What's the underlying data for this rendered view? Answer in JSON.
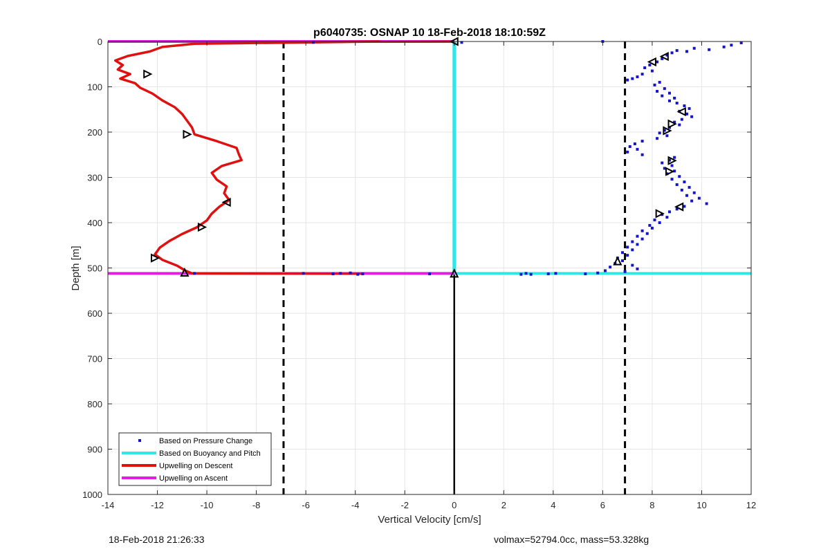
{
  "footer": {
    "left": "18-Feb-2018 21:26:33",
    "right": "volmax=52794.0cc, mass=53.328kg"
  },
  "chart_data": {
    "type": "line",
    "title": "p6040735: OSNAP 10 18-Feb-2018 18:10:59Z",
    "xlabel": "Vertical Velocity [cm/s]",
    "ylabel": "Depth [m]",
    "xlim": [
      -14,
      12
    ],
    "ylim": [
      0,
      1000
    ],
    "y_reversed": true,
    "grid": true,
    "xticks": [
      -14,
      -12,
      -10,
      -8,
      -6,
      -4,
      -2,
      0,
      2,
      4,
      6,
      8,
      10,
      12
    ],
    "yticks": [
      0,
      100,
      200,
      300,
      400,
      500,
      600,
      700,
      800,
      900,
      1000
    ],
    "legend_position": "bottom-left",
    "legend": [
      {
        "label": "Based on Pressure Change",
        "style": "dot",
        "color": "#1414c8"
      },
      {
        "label": "Based on Buoyancy and Pitch",
        "style": "line",
        "color": "#33e6e6"
      },
      {
        "label": "Upwelling on Descent",
        "style": "line",
        "color": "#e01010"
      },
      {
        "label": "Upwelling on Ascent",
        "style": "line",
        "color": "#e020e0"
      }
    ],
    "reference_lines": {
      "dashed_x": [
        -6.9,
        6.9
      ],
      "dashed_color": "#000000",
      "vertical_black": {
        "x": 0,
        "from_depth": 512,
        "to_depth": 1000
      }
    },
    "series": {
      "upwelling_descent": {
        "color": "#e01010",
        "depth": [
          0,
          5,
          12,
          22,
          32,
          42,
          52,
          62,
          72,
          82,
          92,
          102,
          115,
          130,
          145,
          160,
          175,
          190,
          205,
          220,
          235,
          250,
          262,
          275,
          290,
          305,
          320,
          335,
          350,
          365,
          380,
          395,
          410,
          425,
          440,
          455,
          470,
          482,
          495,
          505,
          512
        ],
        "values": [
          -3,
          -10.5,
          -11.8,
          -12.3,
          -13.2,
          -13.7,
          -13.4,
          -13.6,
          -13.1,
          -13.5,
          -12.9,
          -12.7,
          -12.2,
          -11.8,
          -11.3,
          -11.0,
          -10.8,
          -10.6,
          -10.5,
          -9.6,
          -8.8,
          -8.7,
          -8.6,
          -9.4,
          -9.8,
          -9.6,
          -9.2,
          -9.3,
          -9.1,
          -9.5,
          -9.8,
          -10.0,
          -10.4,
          -11.0,
          -11.5,
          -11.9,
          -12.1,
          -11.8,
          -11.2,
          -10.9,
          -10.6
        ]
      },
      "upwelling_ascent": {
        "color": "#e020e0",
        "segments": [
          {
            "depth": 0,
            "x_from": -14,
            "x_to": 0
          },
          {
            "depth": 512,
            "x_from": -14,
            "x_to": 0
          }
        ]
      },
      "buoyancy_pitch": {
        "color": "#33e6e6",
        "vertical": {
          "x": 0,
          "from_depth": 0,
          "to_depth": 512
        },
        "horizontal": {
          "depth": 512,
          "x_from": 0,
          "x_to": 12
        }
      },
      "pressure_change": {
        "color": "#1414c8",
        "points": [
          [
            11.6,
            3
          ],
          [
            11.2,
            8
          ],
          [
            10.9,
            12
          ],
          [
            10.3,
            18
          ],
          [
            9.7,
            15
          ],
          [
            9.4,
            22
          ],
          [
            9.0,
            20
          ],
          [
            8.8,
            25
          ],
          [
            8.6,
            30
          ],
          [
            8.4,
            38
          ],
          [
            8.2,
            45
          ],
          [
            7.9,
            52
          ],
          [
            7.7,
            58
          ],
          [
            8.0,
            65
          ],
          [
            7.6,
            72
          ],
          [
            7.4,
            78
          ],
          [
            7.2,
            82
          ],
          [
            7.0,
            85
          ],
          [
            8.3,
            90
          ],
          [
            8.1,
            96
          ],
          [
            8.5,
            104
          ],
          [
            8.2,
            110
          ],
          [
            8.7,
            114
          ],
          [
            8.4,
            120
          ],
          [
            8.9,
            125
          ],
          [
            8.7,
            131
          ],
          [
            9.0,
            136
          ],
          [
            9.3,
            142
          ],
          [
            9.5,
            148
          ],
          [
            9.1,
            154
          ],
          [
            9.4,
            160
          ],
          [
            9.6,
            166
          ],
          [
            9.2,
            172
          ],
          [
            8.9,
            178
          ],
          [
            9.1,
            184
          ],
          [
            8.7,
            190
          ],
          [
            8.5,
            196
          ],
          [
            8.3,
            202
          ],
          [
            8.6,
            208
          ],
          [
            8.2,
            214
          ],
          [
            7.6,
            220
          ],
          [
            7.3,
            226
          ],
          [
            7.1,
            232
          ],
          [
            7.4,
            238
          ],
          [
            7.0,
            244
          ],
          [
            7.6,
            250
          ],
          [
            8.9,
            256
          ],
          [
            8.7,
            262
          ],
          [
            8.4,
            268
          ],
          [
            8.8,
            274
          ],
          [
            8.5,
            280
          ],
          [
            8.9,
            286
          ],
          [
            8.6,
            292
          ],
          [
            9.1,
            298
          ],
          [
            8.8,
            304
          ],
          [
            9.3,
            310
          ],
          [
            9.0,
            316
          ],
          [
            9.5,
            322
          ],
          [
            9.2,
            328
          ],
          [
            9.7,
            334
          ],
          [
            9.4,
            340
          ],
          [
            9.9,
            346
          ],
          [
            9.6,
            352
          ],
          [
            10.2,
            358
          ],
          [
            9.3,
            364
          ],
          [
            9.0,
            370
          ],
          [
            8.7,
            376
          ],
          [
            8.4,
            382
          ],
          [
            8.6,
            388
          ],
          [
            8.1,
            394
          ],
          [
            8.3,
            400
          ],
          [
            7.9,
            406
          ],
          [
            8.0,
            412
          ],
          [
            7.6,
            418
          ],
          [
            7.8,
            424
          ],
          [
            7.4,
            430
          ],
          [
            7.6,
            436
          ],
          [
            7.2,
            442
          ],
          [
            7.4,
            448
          ],
          [
            7.0,
            454
          ],
          [
            7.2,
            460
          ],
          [
            6.8,
            466
          ],
          [
            7.0,
            472
          ],
          [
            6.6,
            478
          ],
          [
            6.8,
            484
          ],
          [
            6.5,
            490
          ],
          [
            7.2,
            494
          ],
          [
            6.3,
            498
          ],
          [
            7.4,
            502
          ],
          [
            6.1,
            506
          ],
          [
            6.9,
            508
          ],
          [
            5.8,
            511
          ],
          [
            5.3,
            513
          ],
          [
            4.1,
            512
          ],
          [
            3.8,
            513
          ],
          [
            3.1,
            514
          ],
          [
            2.9,
            512
          ],
          [
            2.7,
            514
          ],
          [
            6.0,
            0
          ],
          [
            0.3,
            2
          ],
          [
            -5.7,
            2
          ],
          [
            -6.1,
            512
          ],
          [
            -4.9,
            513
          ],
          [
            -4.6,
            512
          ],
          [
            -4.2,
            511
          ],
          [
            -3.9,
            514
          ],
          [
            -3.7,
            513
          ],
          [
            -1.0,
            513
          ],
          [
            -10.5,
            512
          ]
        ]
      },
      "triangle_markers": {
        "color": "#000000",
        "points": [
          {
            "x": 0,
            "depth": 0,
            "dir": "left"
          },
          {
            "x": -12.4,
            "depth": 72,
            "dir": "right"
          },
          {
            "x": -10.8,
            "depth": 205,
            "dir": "right"
          },
          {
            "x": -9.2,
            "depth": 355,
            "dir": "left"
          },
          {
            "x": -10.2,
            "depth": 410,
            "dir": "right"
          },
          {
            "x": -12.1,
            "depth": 478,
            "dir": "right"
          },
          {
            "x": -10.9,
            "depth": 510,
            "dir": "up"
          },
          {
            "x": 0,
            "depth": 512,
            "dir": "up"
          },
          {
            "x": 8.5,
            "depth": 33,
            "dir": "left"
          },
          {
            "x": 8.0,
            "depth": 45,
            "dir": "left"
          },
          {
            "x": 9.2,
            "depth": 155,
            "dir": "left"
          },
          {
            "x": 8.8,
            "depth": 182,
            "dir": "right"
          },
          {
            "x": 8.6,
            "depth": 197,
            "dir": "right"
          },
          {
            "x": 8.8,
            "depth": 263,
            "dir": "right"
          },
          {
            "x": 8.7,
            "depth": 287,
            "dir": "right"
          },
          {
            "x": 9.1,
            "depth": 365,
            "dir": "left"
          },
          {
            "x": 8.3,
            "depth": 380,
            "dir": "right"
          },
          {
            "x": 6.6,
            "depth": 485,
            "dir": "up"
          }
        ]
      }
    }
  }
}
